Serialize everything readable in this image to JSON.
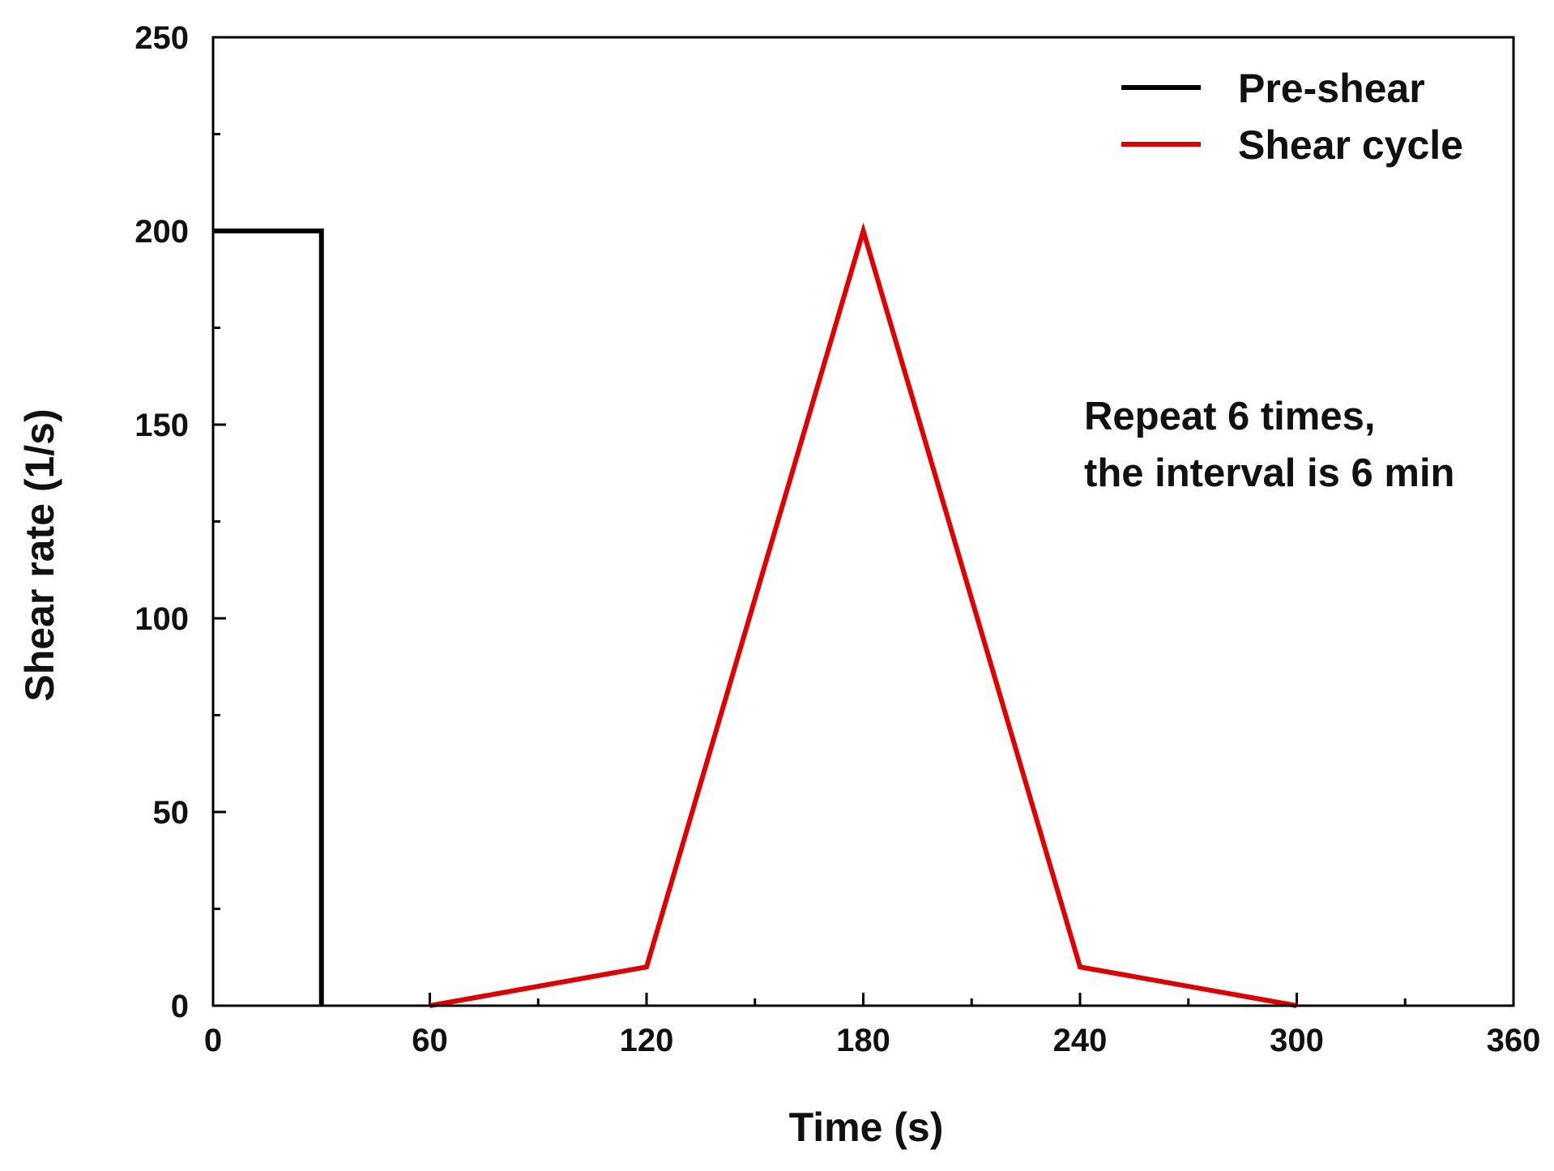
{
  "chart_data": {
    "type": "line",
    "title": "",
    "xlabel": "Time (s)",
    "ylabel": "Shear rate (1/s)",
    "xlim": [
      0,
      360
    ],
    "ylim": [
      0,
      250
    ],
    "xticks": [
      0,
      60,
      120,
      180,
      240,
      300,
      360
    ],
    "yticks": [
      0,
      50,
      100,
      150,
      200,
      250
    ],
    "x_minor_step": 30,
    "y_minor_step": 25,
    "grid": false,
    "legend_position": "top-right",
    "series": [
      {
        "name": "Pre-shear",
        "color": "#000000",
        "x": [
          0,
          30,
          30
        ],
        "y": [
          200,
          200,
          0
        ]
      },
      {
        "name": "Shear cycle",
        "color": "#e00000",
        "x": [
          60,
          120,
          180,
          240,
          300
        ],
        "y": [
          0,
          10,
          200,
          10,
          0
        ]
      }
    ],
    "annotations": [
      "Repeat 6 times,",
      "the interval is 6 min"
    ]
  }
}
